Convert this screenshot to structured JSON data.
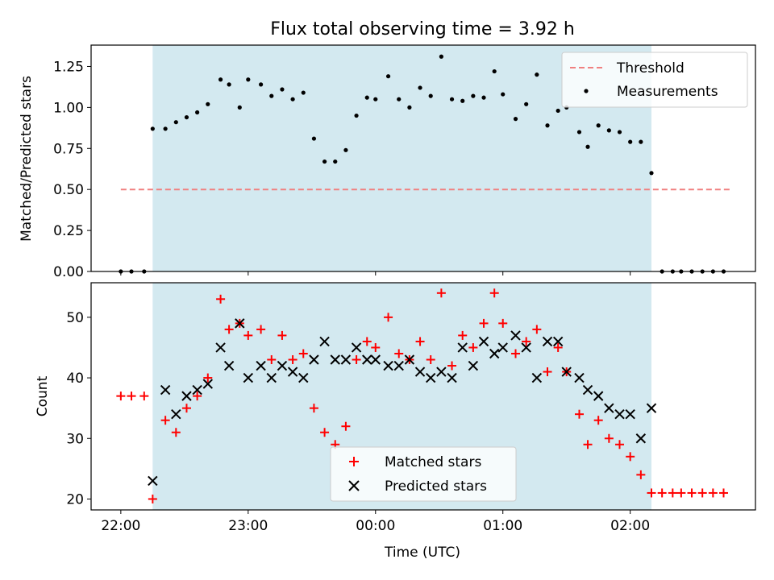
{
  "chart_data": [
    {
      "type": "scatter",
      "title": "Flux total observing time = 3.92 h",
      "xlabel": "",
      "ylabel": "Matched/Predicted stars",
      "xlim": [
        "21:46",
        "02:59"
      ],
      "ylim": [
        0,
        1.38
      ],
      "yticks": [
        "0.00",
        "0.25",
        "0.50",
        "0.75",
        "1.00",
        "1.25"
      ],
      "shaded_span": [
        "22:15",
        "02:10"
      ],
      "shade_color": "#d3e9f0",
      "threshold": {
        "name": "Threshold",
        "value": 0.5,
        "x_range": [
          "22:00",
          "02:48"
        ],
        "color": "#f08080"
      },
      "series": [
        {
          "name": "Measurements",
          "color": "#000000",
          "points": [
            [
              "22:00",
              0.0
            ],
            [
              "22:05",
              0.0
            ],
            [
              "22:11",
              0.0
            ],
            [
              "22:15",
              0.87
            ],
            [
              "22:21",
              0.87
            ],
            [
              "22:26",
              0.91
            ],
            [
              "22:31",
              0.94
            ],
            [
              "22:36",
              0.97
            ],
            [
              "22:41",
              1.02
            ],
            [
              "22:47",
              1.17
            ],
            [
              "22:51",
              1.14
            ],
            [
              "22:56",
              1.0
            ],
            [
              "23:00",
              1.17
            ],
            [
              "23:06",
              1.14
            ],
            [
              "23:11",
              1.07
            ],
            [
              "23:16",
              1.11
            ],
            [
              "23:21",
              1.05
            ],
            [
              "23:26",
              1.09
            ],
            [
              "23:31",
              0.81
            ],
            [
              "23:36",
              0.67
            ],
            [
              "23:41",
              0.67
            ],
            [
              "23:46",
              0.74
            ],
            [
              "23:51",
              0.95
            ],
            [
              "23:56",
              1.06
            ],
            [
              "00:00",
              1.05
            ],
            [
              "00:06",
              1.19
            ],
            [
              "00:11",
              1.05
            ],
            [
              "00:16",
              1.0
            ],
            [
              "00:21",
              1.12
            ],
            [
              "00:26",
              1.07
            ],
            [
              "00:31",
              1.31
            ],
            [
              "00:36",
              1.05
            ],
            [
              "00:41",
              1.04
            ],
            [
              "00:46",
              1.07
            ],
            [
              "00:51",
              1.06
            ],
            [
              "00:56",
              1.22
            ],
            [
              "01:00",
              1.08
            ],
            [
              "01:06",
              0.93
            ],
            [
              "01:11",
              1.02
            ],
            [
              "01:16",
              1.2
            ],
            [
              "01:21",
              0.89
            ],
            [
              "01:26",
              0.98
            ],
            [
              "01:30",
              1.0
            ],
            [
              "01:36",
              0.85
            ],
            [
              "01:40",
              0.76
            ],
            [
              "01:45",
              0.89
            ],
            [
              "01:50",
              0.86
            ],
            [
              "01:55",
              0.85
            ],
            [
              "02:00",
              0.79
            ],
            [
              "02:05",
              0.79
            ],
            [
              "02:10",
              0.6
            ],
            [
              "02:15",
              0.0
            ],
            [
              "02:20",
              0.0
            ],
            [
              "02:24",
              0.0
            ],
            [
              "02:29",
              0.0
            ],
            [
              "02:34",
              0.0
            ],
            [
              "02:39",
              0.0
            ],
            [
              "02:44",
              0.0
            ]
          ]
        }
      ],
      "legend": {
        "placement": "top-right",
        "entries": [
          "Threshold",
          "Measurements"
        ]
      }
    },
    {
      "type": "scatter",
      "title": "",
      "xlabel": "Time (UTC)",
      "ylabel": "Count",
      "xlim": [
        "21:46",
        "02:59"
      ],
      "ylim": [
        18.2,
        55.7
      ],
      "xticks": [
        "22:00",
        "23:00",
        "00:00",
        "01:00",
        "02:00"
      ],
      "yticks": [
        "20",
        "30",
        "40",
        "50"
      ],
      "shaded_span": [
        "22:15",
        "02:10"
      ],
      "shade_color": "#d3e9f0",
      "series": [
        {
          "name": "Matched stars",
          "marker": "+",
          "color": "#ff0000",
          "points": [
            [
              "22:00",
              37
            ],
            [
              "22:05",
              37
            ],
            [
              "22:11",
              37
            ],
            [
              "22:15",
              20
            ],
            [
              "22:21",
              33
            ],
            [
              "22:26",
              31
            ],
            [
              "22:31",
              35
            ],
            [
              "22:36",
              37
            ],
            [
              "22:41",
              40
            ],
            [
              "22:47",
              53
            ],
            [
              "22:51",
              48
            ],
            [
              "22:56",
              49
            ],
            [
              "23:00",
              47
            ],
            [
              "23:06",
              48
            ],
            [
              "23:11",
              43
            ],
            [
              "23:16",
              47
            ],
            [
              "23:21",
              43
            ],
            [
              "23:26",
              44
            ],
            [
              "23:31",
              35
            ],
            [
              "23:36",
              31
            ],
            [
              "23:41",
              29
            ],
            [
              "23:46",
              32
            ],
            [
              "23:51",
              43
            ],
            [
              "23:56",
              46
            ],
            [
              "00:00",
              45
            ],
            [
              "00:06",
              50
            ],
            [
              "00:11",
              44
            ],
            [
              "00:16",
              43
            ],
            [
              "00:21",
              46
            ],
            [
              "00:26",
              43
            ],
            [
              "00:31",
              54
            ],
            [
              "00:36",
              42
            ],
            [
              "00:41",
              47
            ],
            [
              "00:46",
              45
            ],
            [
              "00:51",
              49
            ],
            [
              "00:56",
              54
            ],
            [
              "01:00",
              49
            ],
            [
              "01:06",
              44
            ],
            [
              "01:11",
              46
            ],
            [
              "01:16",
              48
            ],
            [
              "01:21",
              41
            ],
            [
              "01:26",
              45
            ],
            [
              "01:30",
              41
            ],
            [
              "01:36",
              34
            ],
            [
              "01:40",
              29
            ],
            [
              "01:45",
              33
            ],
            [
              "01:50",
              30
            ],
            [
              "01:55",
              29
            ],
            [
              "02:00",
              27
            ],
            [
              "02:05",
              24
            ],
            [
              "02:10",
              21
            ],
            [
              "02:15",
              21
            ],
            [
              "02:20",
              21
            ],
            [
              "02:24",
              21
            ],
            [
              "02:29",
              21
            ],
            [
              "02:34",
              21
            ],
            [
              "02:39",
              21
            ],
            [
              "02:44",
              21
            ]
          ]
        },
        {
          "name": "Predicted stars",
          "marker": "x",
          "color": "#000000",
          "points": [
            [
              "22:15",
              23
            ],
            [
              "22:21",
              38
            ],
            [
              "22:26",
              34
            ],
            [
              "22:31",
              37
            ],
            [
              "22:36",
              38
            ],
            [
              "22:41",
              39
            ],
            [
              "22:47",
              45
            ],
            [
              "22:51",
              42
            ],
            [
              "22:56",
              49
            ],
            [
              "23:00",
              40
            ],
            [
              "23:06",
              42
            ],
            [
              "23:11",
              40
            ],
            [
              "23:16",
              42
            ],
            [
              "23:21",
              41
            ],
            [
              "23:26",
              40
            ],
            [
              "23:31",
              43
            ],
            [
              "23:36",
              46
            ],
            [
              "23:41",
              43
            ],
            [
              "23:46",
              43
            ],
            [
              "23:51",
              45
            ],
            [
              "23:56",
              43
            ],
            [
              "00:00",
              43
            ],
            [
              "00:06",
              42
            ],
            [
              "00:11",
              42
            ],
            [
              "00:16",
              43
            ],
            [
              "00:21",
              41
            ],
            [
              "00:26",
              40
            ],
            [
              "00:31",
              41
            ],
            [
              "00:36",
              40
            ],
            [
              "00:41",
              45
            ],
            [
              "00:46",
              42
            ],
            [
              "00:51",
              46
            ],
            [
              "00:56",
              44
            ],
            [
              "01:00",
              45
            ],
            [
              "01:06",
              47
            ],
            [
              "01:11",
              45
            ],
            [
              "01:16",
              40
            ],
            [
              "01:21",
              46
            ],
            [
              "01:26",
              46
            ],
            [
              "01:30",
              41
            ],
            [
              "01:36",
              40
            ],
            [
              "01:40",
              38
            ],
            [
              "01:45",
              37
            ],
            [
              "01:50",
              35
            ],
            [
              "01:55",
              34
            ],
            [
              "02:00",
              34
            ],
            [
              "02:05",
              30
            ],
            [
              "02:10",
              35
            ]
          ]
        }
      ],
      "legend": {
        "placement": "bottom-center",
        "entries": [
          "Matched stars",
          "Predicted stars"
        ]
      }
    }
  ]
}
